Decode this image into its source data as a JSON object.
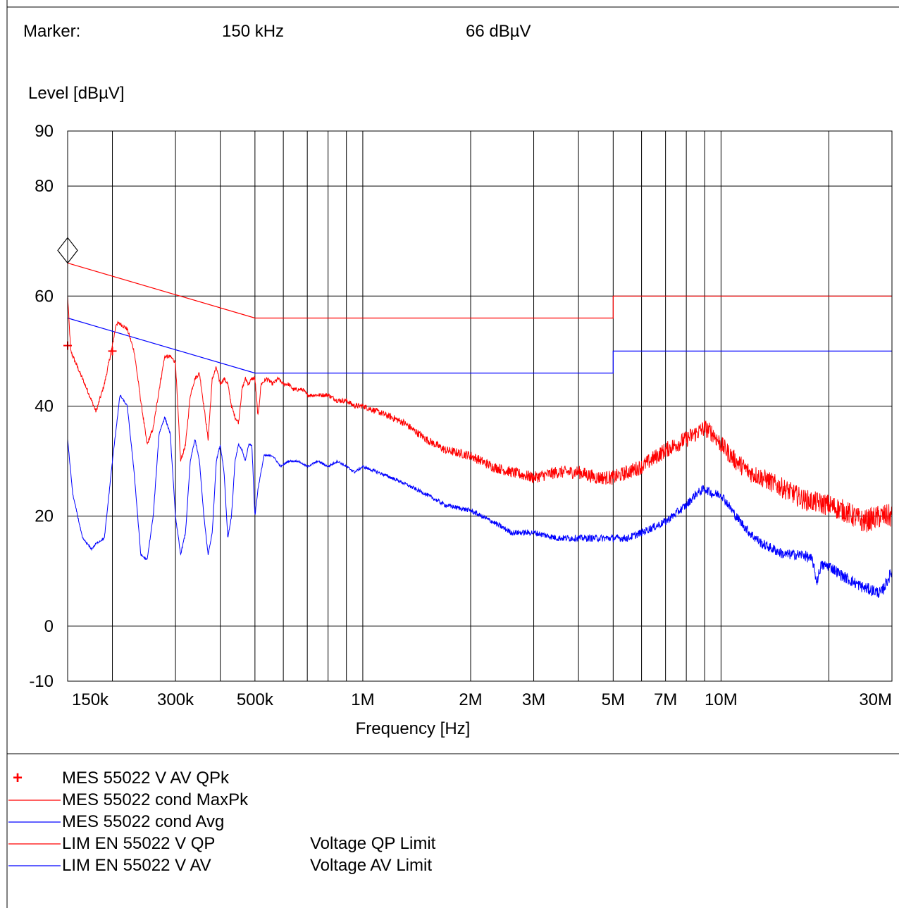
{
  "header": {
    "marker_label": "Marker:",
    "marker_frequency": "150 kHz",
    "marker_level": "66 dBµV"
  },
  "chart_data": {
    "type": "line",
    "ylabel": "Level [dBµV]",
    "xlabel": "Frequency [Hz]",
    "x_scale": "log",
    "xlim": [
      150000,
      30000000
    ],
    "ylim": [
      -10,
      90
    ],
    "grid": true,
    "y_ticks": [
      {
        "value": 90,
        "label": "90"
      },
      {
        "value": 80,
        "label": "80"
      },
      {
        "value": 60,
        "label": "60"
      },
      {
        "value": 40,
        "label": "40"
      },
      {
        "value": 20,
        "label": "20"
      },
      {
        "value": 0,
        "label": "0"
      },
      {
        "value": -10,
        "label": "-10"
      }
    ],
    "y_gridlines": [
      80,
      60,
      40,
      20,
      0
    ],
    "x_gridlines": [
      200000,
      300000,
      400000,
      500000,
      600000,
      700000,
      800000,
      900000,
      1000000,
      2000000,
      3000000,
      4000000,
      5000000,
      6000000,
      7000000,
      8000000,
      9000000,
      10000000,
      20000000,
      30000000
    ],
    "x_ticks": [
      {
        "value": 150000,
        "label": "150k"
      },
      {
        "value": 300000,
        "label": "300k"
      },
      {
        "value": 500000,
        "label": "500k"
      },
      {
        "value": 1000000,
        "label": "1M"
      },
      {
        "value": 2000000,
        "label": "2M"
      },
      {
        "value": 3000000,
        "label": "3M"
      },
      {
        "value": 5000000,
        "label": "5M"
      },
      {
        "value": 7000000,
        "label": "7M"
      },
      {
        "value": 10000000,
        "label": "10M"
      },
      {
        "value": 30000000,
        "label": "30M"
      }
    ],
    "marker": {
      "x": 150000,
      "y": 66
    },
    "series": [
      {
        "name": "MES  55022 V AV QPk",
        "kind": "points",
        "color": "#ff0000",
        "x": [
          150000,
          200000
        ],
        "y": [
          51,
          50
        ]
      },
      {
        "name": "MES  55022 cond MaxPk",
        "kind": "trace",
        "color": "#ff0000",
        "noise": 1.2,
        "x": [
          150000,
          153000,
          160000,
          170000,
          180000,
          190000,
          200000,
          205000,
          210000,
          220000,
          230000,
          240000,
          250000,
          260000,
          270000,
          280000,
          290000,
          300000,
          310000,
          320000,
          330000,
          340000,
          350000,
          360000,
          370000,
          380000,
          390000,
          400000,
          410000,
          420000,
          430000,
          440000,
          450000,
          460000,
          470000,
          480000,
          490000,
          500000,
          510000,
          520000,
          540000,
          560000,
          580000,
          600000,
          620000,
          640000,
          660000,
          680000,
          700000,
          750000,
          800000,
          850000,
          900000,
          950000,
          1000000,
          1100000,
          1200000,
          1300000,
          1500000,
          1700000,
          2000000,
          2300000,
          2600000,
          3000000,
          3500000,
          4000000,
          4500000,
          5000000,
          5500000,
          6000000,
          7000000,
          8000000,
          9000000,
          9500000,
          10000000,
          11000000,
          12000000,
          13000000,
          15000000,
          17000000,
          20000000,
          22000000,
          25000000,
          28000000,
          30000000
        ],
        "y": [
          60,
          50,
          47,
          43,
          39,
          44,
          51,
          55,
          55,
          54,
          50,
          41,
          33,
          36,
          43,
          49,
          49,
          48,
          30,
          33,
          42,
          45,
          46,
          40,
          34,
          45,
          47,
          44,
          45,
          44,
          40,
          38,
          37,
          43,
          45,
          44,
          45,
          45,
          38,
          44,
          45,
          44,
          45,
          44,
          44,
          43,
          43,
          43,
          42,
          42,
          42,
          41,
          41,
          40,
          40,
          39,
          38,
          37,
          34,
          32,
          31,
          29,
          28,
          27,
          28,
          28,
          27,
          27,
          28,
          29,
          32,
          34,
          36,
          35,
          33,
          30,
          28,
          27,
          25,
          23,
          22,
          21,
          19,
          20,
          20
        ]
      },
      {
        "name": "MES  55022 cond Avg",
        "kind": "trace",
        "color": "#0000ff",
        "noise": 0.6,
        "x": [
          150000,
          155000,
          160000,
          165000,
          170000,
          175000,
          180000,
          190000,
          200000,
          210000,
          220000,
          230000,
          240000,
          250000,
          260000,
          270000,
          280000,
          290000,
          300000,
          310000,
          320000,
          330000,
          340000,
          350000,
          360000,
          370000,
          380000,
          390000,
          400000,
          410000,
          420000,
          430000,
          440000,
          450000,
          460000,
          470000,
          480000,
          490000,
          500000,
          510000,
          530000,
          560000,
          590000,
          620000,
          660000,
          700000,
          750000,
          800000,
          850000,
          900000,
          950000,
          1000000,
          1100000,
          1200000,
          1300000,
          1500000,
          1700000,
          2000000,
          2300000,
          2600000,
          3000000,
          3500000,
          4000000,
          4500000,
          5000000,
          5500000,
          6000000,
          7000000,
          8000000,
          8500000,
          9000000,
          9500000,
          10000000,
          11000000,
          12000000,
          13000000,
          15000000,
          17000000,
          18000000,
          18500000,
          19000000,
          20000000,
          22000000,
          25000000,
          28000000,
          30000000
        ],
        "y": [
          34,
          24,
          20,
          16,
          15,
          14,
          15,
          16,
          30,
          42,
          40,
          28,
          13,
          12,
          20,
          35,
          38,
          35,
          20,
          13,
          17,
          30,
          34,
          30,
          20,
          13,
          17,
          30,
          33,
          28,
          16,
          20,
          30,
          33,
          32,
          30,
          33,
          33,
          20,
          25,
          31,
          31,
          29,
          30,
          30,
          29,
          30,
          29,
          30,
          29,
          28,
          29,
          28,
          27,
          26,
          24,
          22,
          21,
          19,
          17,
          17,
          16,
          16,
          16,
          16,
          16,
          17,
          19,
          22,
          24,
          25,
          24,
          24,
          20,
          17,
          15,
          13,
          13,
          12,
          8,
          11,
          11,
          9,
          7,
          6,
          10
        ]
      },
      {
        "name": "LIM  EN 55022 V QP",
        "kind": "limit",
        "color": "#ff0000",
        "x": [
          150000,
          500000,
          5000000,
          5000000,
          30000000
        ],
        "y": [
          66,
          56,
          56,
          60,
          60
        ]
      },
      {
        "name": "LIM  EN 55022 V AV",
        "kind": "limit",
        "color": "#0000ff",
        "x": [
          150000,
          500000,
          5000000,
          5000000,
          30000000
        ],
        "y": [
          56,
          46,
          46,
          50,
          50
        ]
      }
    ]
  },
  "legend": [
    {
      "symbol": "+",
      "style": "plus",
      "color": "#ff0000",
      "name": "MES  55022 V AV QPk",
      "description": ""
    },
    {
      "symbol": "",
      "style": "line",
      "color": "#ff0000",
      "name": "MES  55022 cond MaxPk",
      "description": ""
    },
    {
      "symbol": "",
      "style": "line",
      "color": "#0000ff",
      "name": "MES  55022 cond Avg",
      "description": ""
    },
    {
      "symbol": "",
      "style": "line",
      "color": "#ff0000",
      "name": "LIM  EN 55022 V QP",
      "description": "Voltage QP Limit"
    },
    {
      "symbol": "",
      "style": "line",
      "color": "#0000ff",
      "name": "LIM  EN 55022 V AV",
      "description": "Voltage AV Limit"
    }
  ]
}
